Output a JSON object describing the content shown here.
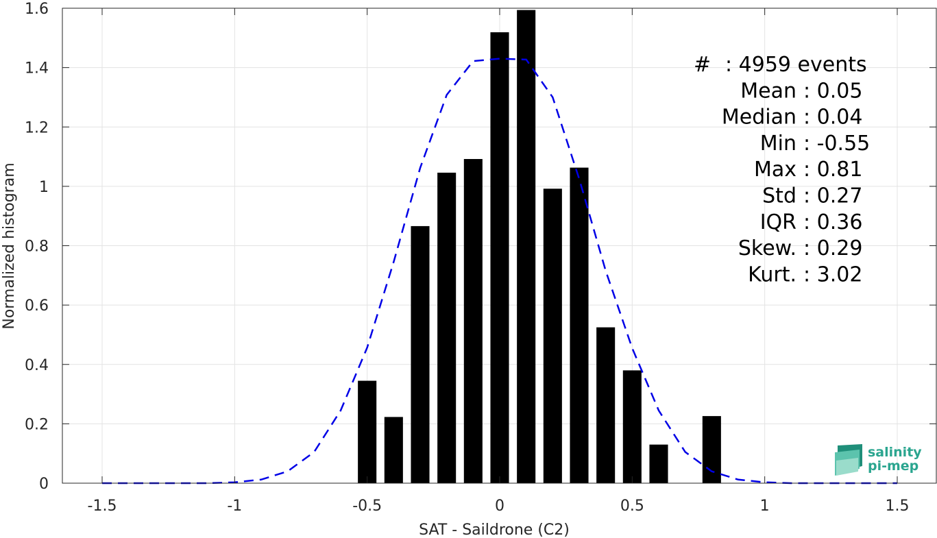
{
  "chart_data": {
    "type": "bar",
    "xlabel": "SAT - Saildrone (C2)",
    "ylabel": "Normalized histogram",
    "xlim": [
      -1.65,
      1.65
    ],
    "ylim": [
      0,
      1.6
    ],
    "xticks": [
      -1.5,
      -1,
      -0.5,
      0,
      0.5,
      1,
      1.5
    ],
    "xtick_labels": [
      "-1.5",
      "-1",
      "-0.5",
      "0",
      "0.5",
      "1",
      "1.5"
    ],
    "yticks": [
      0,
      0.2,
      0.4,
      0.6,
      0.8,
      1,
      1.2,
      1.4,
      1.6
    ],
    "ytick_labels": [
      "0",
      "0.2",
      "0.4",
      "0.6",
      "0.8",
      "1",
      "1.2",
      "1.4",
      "1.6"
    ],
    "grid": true,
    "bar_width": 0.07,
    "bar_color": "#000000",
    "bars": {
      "x": [
        -0.5,
        -0.4,
        -0.3,
        -0.2,
        -0.1,
        0.0,
        0.1,
        0.2,
        0.3,
        0.4,
        0.5,
        0.6,
        0.8
      ],
      "values": [
        0.345,
        0.223,
        0.866,
        1.046,
        1.092,
        1.519,
        1.594,
        0.992,
        1.063,
        0.525,
        0.38,
        0.13,
        0.226
      ]
    },
    "fit_curve": {
      "style": "dashed",
      "color": "#0000e6",
      "x": [
        -1.5,
        -1.4,
        -1.3,
        -1.2,
        -1.1,
        -1.0,
        -0.9,
        -0.8,
        -0.7,
        -0.6,
        -0.5,
        -0.4,
        -0.3,
        -0.2,
        -0.1,
        0.0,
        0.1,
        0.2,
        0.3,
        0.4,
        0.5,
        0.6,
        0.7,
        0.8,
        0.9,
        1.0,
        1.1,
        1.2,
        1.3,
        1.4,
        1.5
      ],
      "y": [
        0.0,
        0.0,
        0.0,
        0.0,
        0.0,
        0.003,
        0.012,
        0.04,
        0.105,
        0.245,
        0.457,
        0.745,
        1.062,
        1.308,
        1.422,
        1.43,
        1.427,
        1.3,
        1.025,
        0.715,
        0.455,
        0.245,
        0.105,
        0.04,
        0.012,
        0.003,
        0.0,
        0.0,
        0.0,
        0.0,
        0.0
      ]
    }
  },
  "stats": [
    {
      "label": "#",
      "value": ": 4959 events"
    },
    {
      "label": "Mean",
      "value": ": 0.05"
    },
    {
      "label": "Median",
      "value": ": 0.04"
    },
    {
      "label": "Min",
      "value": ": -0.55"
    },
    {
      "label": "Max",
      "value": ": 0.81"
    },
    {
      "label": "Std",
      "value": ": 0.27"
    },
    {
      "label": "IQR",
      "value": ": 0.36"
    },
    {
      "label": "Skew.",
      "value": ": 0.29"
    },
    {
      "label": "Kurt.",
      "value": ": 3.02"
    }
  ],
  "logo": {
    "line1": "salinity",
    "line2": "pi-mep",
    "colors": [
      "#1f8f7a",
      "#2aa58f",
      "#5cc3ad",
      "#9adccb"
    ]
  }
}
